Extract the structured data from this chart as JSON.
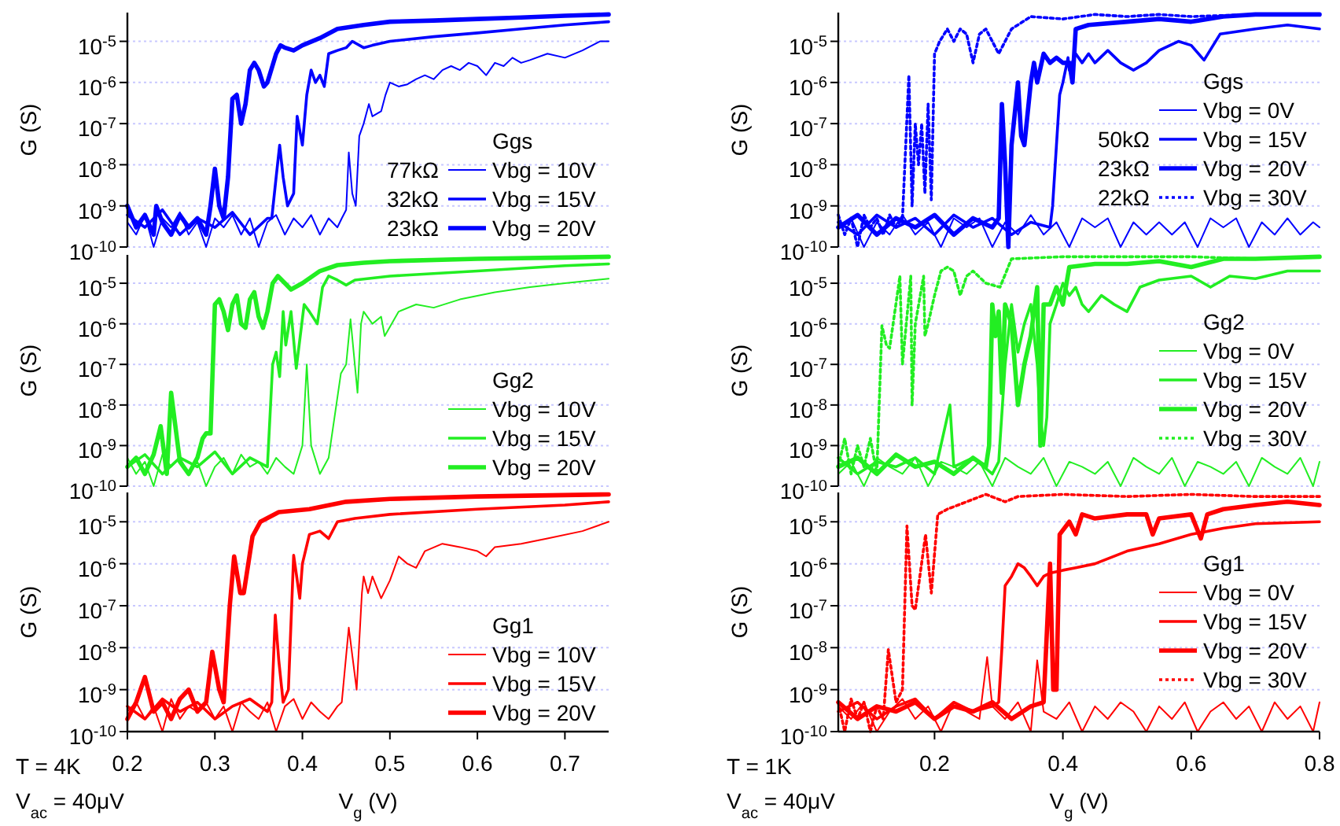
{
  "chart_data": [
    {
      "type": "line",
      "log": "y",
      "xlim": [
        0.2,
        0.75
      ],
      "ylim": [
        1e-10,
        5e-05
      ],
      "yticks": [
        {
          "value": 1e-10,
          "label": "10$^{-10}$"
        },
        {
          "value": 1e-09,
          "label": "10$^{-9}$"
        },
        {
          "value": 1e-08,
          "label": "10$^{-8}$"
        },
        {
          "value": 1e-07,
          "label": "10$^{-7}$"
        },
        {
          "value": 1e-06,
          "label": "10$^{-6}$"
        },
        {
          "value": 1e-05,
          "label": "10$^{-5}$"
        }
      ],
      "grid": "y",
      "tick_labels": "y",
      "ylabel": "G (S)",
      "legend": "bottom right",
      "legend_title": "Ggs",
      "annotations": [
        "77kΩ",
        "32kΩ",
        "23kΩ"
      ],
      "series": [
        {
          "name": "Vbg = 10V",
          "color": "#0000ff",
          "x": [
            0.2,
            0.21,
            0.22,
            0.23,
            0.24,
            0.25,
            0.26,
            0.27,
            0.28,
            0.29,
            0.3,
            0.31,
            0.32,
            0.33,
            0.34,
            0.35,
            0.36,
            0.37,
            0.38,
            0.39,
            0.4,
            0.41,
            0.42,
            0.43,
            0.44,
            0.445,
            0.45,
            0.453,
            0.457,
            0.461,
            0.465,
            0.47,
            0.476,
            0.48,
            0.49,
            0.495,
            0.5,
            0.51,
            0.52,
            0.53,
            0.54,
            0.55,
            0.56,
            0.57,
            0.58,
            0.59,
            0.6,
            0.61,
            0.62,
            0.63,
            0.64,
            0.65,
            0.66,
            0.68,
            0.7,
            0.72,
            0.74,
            0.75
          ],
          "values": [
            4e-10,
            2e-10,
            6e-10,
            1e-10,
            5e-10,
            3e-10,
            7e-10,
            2e-10,
            4e-10,
            1e-10,
            5e-10,
            3e-10,
            6e-10,
            2e-10,
            5e-10,
            1e-10,
            4e-10,
            6e-10,
            2e-10,
            5e-10,
            3e-10,
            6e-10,
            2e-10,
            5e-10,
            3e-10,
            5e-10,
            8e-10,
            2e-08,
            2e-09,
            1e-09,
            5e-08,
            1e-07,
            3e-07,
            1.5e-07,
            2e-07,
            5e-07,
            1e-06,
            8e-07,
            9e-07,
            1.2e-06,
            1.5e-06,
            1.2e-06,
            2e-06,
            2.5e-06,
            2e-06,
            3e-06,
            2.5e-06,
            1.5e-06,
            3e-06,
            2.5e-06,
            4e-06,
            3e-06,
            3.5e-06,
            5e-06,
            4e-06,
            6e-06,
            1e-05,
            1e-05
          ]
        },
        {
          "name": "Vbg = 15V",
          "color": "#0000ff",
          "x": [
            0.2,
            0.22,
            0.24,
            0.26,
            0.28,
            0.3,
            0.32,
            0.34,
            0.36,
            0.365,
            0.37,
            0.374,
            0.378,
            0.383,
            0.39,
            0.394,
            0.4,
            0.405,
            0.41,
            0.415,
            0.42,
            0.425,
            0.43,
            0.44,
            0.45,
            0.457,
            0.47,
            0.48,
            0.5,
            0.55,
            0.6,
            0.65,
            0.7,
            0.75
          ],
          "values": [
            6e-10,
            3e-10,
            8e-10,
            2e-10,
            5e-10,
            3e-10,
            7e-10,
            2e-10,
            5e-10,
            5e-10,
            5e-09,
            3e-08,
            5e-09,
            1e-09,
            2e-09,
            1.5e-07,
            3e-08,
            5e-07,
            2e-06,
            1e-06,
            1.5e-06,
            8e-07,
            5e-06,
            6e-06,
            7e-06,
            1e-05,
            7e-06,
            8e-06,
            1e-05,
            1.3e-05,
            1.6e-05,
            2e-05,
            2.5e-05,
            3e-05
          ]
        },
        {
          "name": "Vbg = 20V",
          "color": "#0000ff",
          "x": [
            0.2,
            0.21,
            0.22,
            0.23,
            0.233,
            0.24,
            0.25,
            0.26,
            0.27,
            0.28,
            0.29,
            0.295,
            0.3,
            0.305,
            0.31,
            0.315,
            0.32,
            0.325,
            0.33,
            0.335,
            0.34,
            0.345,
            0.35,
            0.356,
            0.36,
            0.37,
            0.375,
            0.38,
            0.39,
            0.4,
            0.42,
            0.44,
            0.47,
            0.5,
            0.55,
            0.6,
            0.65,
            0.7,
            0.75
          ],
          "values": [
            1e-09,
            3e-10,
            6e-10,
            2e-10,
            1e-09,
            4e-10,
            2e-10,
            6e-10,
            3e-10,
            5e-10,
            2e-10,
            1e-09,
            8e-09,
            1e-09,
            5e-10,
            5e-09,
            4e-07,
            5e-07,
            1e-07,
            3e-07,
            2e-06,
            3e-06,
            2e-06,
            8e-07,
            1e-06,
            5e-06,
            8e-06,
            7e-06,
            6e-06,
            8e-06,
            1.2e-05,
            2e-05,
            2.5e-05,
            3e-05,
            3.2e-05,
            3.5e-05,
            3.8e-05,
            4.2e-05,
            4.5e-05
          ]
        }
      ]
    },
    {
      "type": "line",
      "log": "y",
      "xlim": [
        0.05,
        0.8
      ],
      "ylim": [
        1e-10,
        5e-05
      ],
      "yticks": [
        {
          "value": 1e-10,
          "label": "10$^{-10}$"
        },
        {
          "value": 1e-09,
          "label": "10$^{-9}$"
        },
        {
          "value": 1e-08,
          "label": "10$^{-8}$"
        },
        {
          "value": 1e-07,
          "label": "10$^{-7}$"
        },
        {
          "value": 1e-06,
          "label": "10$^{-6}$"
        },
        {
          "value": 1e-05,
          "label": "10$^{-5}$"
        }
      ],
      "grid": "y",
      "tick_labels": "y",
      "ylabel": "G (S)",
      "legend": "right",
      "legend_title": "Ggs",
      "annotations": [
        "50kΩ",
        "23kΩ",
        "22kΩ"
      ],
      "series": [
        {
          "name": "Vbg = 0V",
          "color": "#0000ff",
          "x": [
            0.05,
            0.07,
            0.09,
            0.11,
            0.13,
            0.15,
            0.17,
            0.19,
            0.21,
            0.23,
            0.25,
            0.27,
            0.29,
            0.31,
            0.33,
            0.35,
            0.37,
            0.39,
            0.41,
            0.43,
            0.45,
            0.47,
            0.49,
            0.51,
            0.53,
            0.55,
            0.57,
            0.59,
            0.61,
            0.63,
            0.65,
            0.67,
            0.69,
            0.71,
            0.73,
            0.75,
            0.77,
            0.79,
            0.8
          ],
          "values": [
            3e-10,
            5e-10,
            1e-10,
            4e-10,
            2e-10,
            6e-10,
            2e-10,
            4e-10,
            1e-10,
            5e-10,
            3e-10,
            5e-10,
            1e-10,
            4e-10,
            2e-10,
            6e-10,
            2e-10,
            4e-10,
            1e-10,
            5e-10,
            3e-10,
            5e-10,
            1e-10,
            4e-10,
            2e-10,
            4e-10,
            2e-10,
            4e-10,
            1e-10,
            5e-10,
            3e-10,
            5e-10,
            1e-10,
            4e-10,
            2e-10,
            5e-10,
            2e-10,
            4e-10,
            3e-10
          ]
        },
        {
          "name": "Vbg = 15V",
          "color": "#0000ff",
          "x": [
            0.05,
            0.08,
            0.11,
            0.14,
            0.17,
            0.2,
            0.23,
            0.26,
            0.29,
            0.32,
            0.35,
            0.38,
            0.384,
            0.39,
            0.395,
            0.4,
            0.408,
            0.41,
            0.42,
            0.43,
            0.44,
            0.45,
            0.47,
            0.49,
            0.51,
            0.53,
            0.55,
            0.58,
            0.6,
            0.62,
            0.645,
            0.7,
            0.75,
            0.8
          ],
          "values": [
            4e-10,
            2e-10,
            6e-10,
            3e-10,
            5e-10,
            2e-10,
            6e-10,
            3e-10,
            5e-10,
            2e-10,
            4e-10,
            3e-10,
            1e-09,
            3e-08,
            5e-07,
            1e-06,
            4e-06,
            2e-06,
            5e-06,
            3e-06,
            5e-06,
            3e-06,
            6e-06,
            3e-06,
            2e-06,
            3e-06,
            6e-06,
            1e-05,
            8e-06,
            3.5e-06,
            1.5e-05,
            2e-05,
            2.5e-05,
            2e-05
          ]
        },
        {
          "name": "Vbg = 20V",
          "color": "#0000ff",
          "x": [
            0.05,
            0.08,
            0.11,
            0.14,
            0.17,
            0.2,
            0.23,
            0.26,
            0.29,
            0.3,
            0.305,
            0.31,
            0.315,
            0.32,
            0.33,
            0.335,
            0.34,
            0.35,
            0.355,
            0.36,
            0.37,
            0.38,
            0.39,
            0.4,
            0.41,
            0.415,
            0.42,
            0.44,
            0.5,
            0.55,
            0.6,
            0.65,
            0.7,
            0.8
          ],
          "values": [
            3e-10,
            6e-10,
            2e-10,
            5e-10,
            3e-10,
            6e-10,
            2e-10,
            5e-10,
            3e-10,
            5e-10,
            3e-07,
            1e-08,
            1e-10,
            3e-08,
            1e-06,
            5e-08,
            3e-08,
            1e-06,
            3e-06,
            1e-06,
            5e-06,
            3e-06,
            4e-06,
            3e-06,
            3e-06,
            1e-06,
            2e-05,
            2.5e-05,
            3e-05,
            3.5e-05,
            3e-05,
            4e-05,
            4.5e-05,
            4.5e-05
          ]
        },
        {
          "name": "Vbg = 30V",
          "color": "#0000ff",
          "line_style": "dotted",
          "x": [
            0.05,
            0.06,
            0.07,
            0.08,
            0.09,
            0.1,
            0.11,
            0.12,
            0.13,
            0.14,
            0.15,
            0.16,
            0.165,
            0.17,
            0.175,
            0.18,
            0.185,
            0.19,
            0.195,
            0.2,
            0.208,
            0.22,
            0.23,
            0.24,
            0.25,
            0.26,
            0.27,
            0.28,
            0.3,
            0.32,
            0.35,
            0.4,
            0.45,
            0.5,
            0.55,
            0.6,
            0.7,
            0.8
          ],
          "values": [
            6e-10,
            2e-10,
            5e-10,
            1e-10,
            6e-10,
            3e-10,
            5e-10,
            2e-10,
            6e-10,
            3e-10,
            5e-10,
            1.5e-06,
            1e-09,
            1e-07,
            1e-08,
            1e-07,
            2e-09,
            3e-07,
            1.4e-09,
            5e-06,
            1e-05,
            2e-05,
            1e-05,
            2e-05,
            1.5e-05,
            3e-06,
            1.5e-05,
            2e-05,
            5e-06,
            2e-05,
            4e-05,
            3.5e-05,
            4.5e-05,
            4e-05,
            4.5e-05,
            4e-05,
            4.5e-05,
            4.5e-05
          ]
        }
      ]
    },
    {
      "type": "line",
      "log": "y",
      "xlim": [
        0.2,
        0.75
      ],
      "ylim": [
        1e-10,
        5e-05
      ],
      "yticks": [
        {
          "value": 1e-10,
          "label": "10$^{-10}$"
        },
        {
          "value": 1e-09,
          "label": "10$^{-9}$"
        },
        {
          "value": 1e-08,
          "label": "10$^{-8}$"
        },
        {
          "value": 1e-07,
          "label": "10$^{-7}$"
        },
        {
          "value": 1e-06,
          "label": "10$^{-6}$"
        },
        {
          "value": 1e-05,
          "label": "10$^{-5}$"
        }
      ],
      "grid": "y",
      "tick_labels": "y",
      "ylabel": "G (S)",
      "legend": "bottom right",
      "legend_title": "Gg2",
      "series": [
        {
          "name": "Vbg = 10V",
          "color": "#22ee22",
          "x": [
            0.2,
            0.21,
            0.22,
            0.23,
            0.24,
            0.25,
            0.26,
            0.27,
            0.28,
            0.29,
            0.3,
            0.31,
            0.32,
            0.33,
            0.34,
            0.35,
            0.36,
            0.37,
            0.38,
            0.39,
            0.4,
            0.405,
            0.41,
            0.42,
            0.43,
            0.432,
            0.444,
            0.45,
            0.455,
            0.463,
            0.467,
            0.47,
            0.48,
            0.49,
            0.494,
            0.51,
            0.53,
            0.55,
            0.58,
            0.62,
            0.66,
            0.7,
            0.75
          ],
          "values": [
            5e-10,
            2e-10,
            4e-10,
            1e-10,
            6e-10,
            3e-10,
            5e-10,
            2e-10,
            4e-10,
            1e-10,
            3e-10,
            5e-10,
            2e-10,
            6e-10,
            3e-10,
            4e-10,
            2e-10,
            5e-10,
            3e-10,
            2e-10,
            1e-09,
            1e-07,
            1e-09,
            2e-10,
            5e-10,
            1e-09,
            6e-08,
            1e-07,
            1.3e-06,
            2e-08,
            1e-06,
            2e-06,
            1e-06,
            1.5e-06,
            5e-07,
            2e-06,
            3e-06,
            2.5e-06,
            4e-06,
            6e-06,
            8e-06,
            1e-05,
            1.3e-05
          ]
        },
        {
          "name": "Vbg = 15V",
          "color": "#22ee22",
          "x": [
            0.2,
            0.22,
            0.24,
            0.26,
            0.28,
            0.3,
            0.32,
            0.34,
            0.36,
            0.366,
            0.37,
            0.374,
            0.378,
            0.381,
            0.387,
            0.393,
            0.402,
            0.408,
            0.417,
            0.423,
            0.43,
            0.44,
            0.45,
            0.46,
            0.5,
            0.6,
            0.7,
            0.75
          ],
          "values": [
            3e-10,
            6e-10,
            2e-10,
            5e-10,
            3e-10,
            7e-10,
            2e-10,
            5e-10,
            3e-10,
            1e-07,
            2e-07,
            5e-08,
            2e-06,
            3e-07,
            2e-06,
            8e-08,
            3e-06,
            2e-06,
            1e-06,
            8e-06,
            1.5e-05,
            1.2e-05,
            9e-06,
            1.2e-05,
            1.5e-05,
            2e-05,
            2.7e-05,
            3e-05
          ]
        },
        {
          "name": "Vbg = 20V",
          "color": "#22ee22",
          "x": [
            0.2,
            0.21,
            0.22,
            0.23,
            0.238,
            0.245,
            0.25,
            0.26,
            0.27,
            0.28,
            0.286,
            0.29,
            0.295,
            0.3,
            0.305,
            0.31,
            0.315,
            0.32,
            0.325,
            0.33,
            0.335,
            0.34,
            0.345,
            0.35,
            0.355,
            0.36,
            0.366,
            0.372,
            0.38,
            0.387,
            0.4,
            0.42,
            0.44,
            0.47,
            0.5,
            0.6,
            0.7,
            0.75
          ],
          "values": [
            3e-10,
            5e-10,
            2e-10,
            6e-10,
            3e-09,
            2e-10,
            2e-08,
            4e-10,
            2e-10,
            5e-10,
            1.5e-09,
            2e-09,
            2e-09,
            3e-06,
            4e-06,
            2e-06,
            7e-07,
            3e-06,
            5e-06,
            1e-06,
            8e-07,
            4e-06,
            6e-06,
            1.5e-06,
            8e-07,
            2e-06,
            1e-05,
            1.5e-05,
            1e-05,
            7e-06,
            1e-05,
            2e-05,
            2.8e-05,
            3.2e-05,
            3.5e-05,
            4e-05,
            4.3e-05,
            4.5e-05
          ]
        }
      ]
    },
    {
      "type": "line",
      "log": "y",
      "xlim": [
        0.05,
        0.8
      ],
      "ylim": [
        1e-10,
        5e-05
      ],
      "yticks": [
        {
          "value": 1e-10,
          "label": "10$^{-10}$"
        },
        {
          "value": 1e-09,
          "label": "10$^{-9}$"
        },
        {
          "value": 1e-08,
          "label": "10$^{-8}$"
        },
        {
          "value": 1e-07,
          "label": "10$^{-7}$"
        },
        {
          "value": 1e-06,
          "label": "10$^{-6}$"
        },
        {
          "value": 1e-05,
          "label": "10$^{-5}$"
        }
      ],
      "grid": "y",
      "tick_labels": "y",
      "ylabel": "G (S)",
      "legend": "right",
      "legend_title": "Gg2",
      "series": [
        {
          "name": "Vbg = 0V",
          "color": "#22ee22",
          "x": [
            0.05,
            0.07,
            0.09,
            0.11,
            0.13,
            0.15,
            0.17,
            0.19,
            0.21,
            0.23,
            0.25,
            0.27,
            0.29,
            0.31,
            0.33,
            0.35,
            0.37,
            0.39,
            0.41,
            0.43,
            0.45,
            0.47,
            0.49,
            0.51,
            0.53,
            0.55,
            0.57,
            0.59,
            0.61,
            0.63,
            0.65,
            0.67,
            0.69,
            0.71,
            0.73,
            0.75,
            0.77,
            0.79,
            0.8
          ],
          "values": [
            2e-10,
            4e-10,
            1e-10,
            5e-10,
            3e-10,
            2e-10,
            5e-10,
            1e-10,
            4e-10,
            3e-10,
            2e-10,
            4e-10,
            1e-10,
            5e-10,
            3e-10,
            2e-10,
            5e-10,
            1e-10,
            4e-10,
            3e-10,
            2e-10,
            4e-10,
            1e-10,
            5e-10,
            3e-10,
            2e-10,
            5e-10,
            1e-10,
            4e-10,
            3e-10,
            2e-10,
            4e-10,
            1e-10,
            5e-10,
            3e-10,
            2e-10,
            5e-10,
            1e-10,
            4e-10
          ]
        },
        {
          "name": "Vbg = 15V",
          "color": "#22ee22",
          "x": [
            0.05,
            0.08,
            0.11,
            0.14,
            0.17,
            0.2,
            0.224,
            0.23,
            0.26,
            0.29,
            0.3,
            0.31,
            0.32,
            0.33,
            0.34,
            0.35,
            0.36,
            0.365,
            0.37,
            0.375,
            0.38,
            0.39,
            0.4,
            0.41,
            0.42,
            0.43,
            0.44,
            0.46,
            0.48,
            0.5,
            0.52,
            0.55,
            0.6,
            0.63,
            0.66,
            0.7,
            0.75,
            0.8
          ],
          "values": [
            5e-10,
            2e-10,
            4e-10,
            3e-10,
            5e-10,
            2e-10,
            1e-08,
            3e-10,
            5e-10,
            2e-10,
            4e-10,
            1e-07,
            3e-06,
            2e-07,
            1e-06,
            3e-06,
            1e-07,
            5e-09,
            1e-09,
            5e-09,
            1e-06,
            3e-06,
            1e-05,
            5e-06,
            8e-06,
            3e-06,
            2e-06,
            5e-06,
            3e-06,
            2e-06,
            8e-06,
            1.2e-05,
            1.5e-05,
            8e-06,
            1.5e-05,
            1.3e-05,
            2e-05,
            2e-05
          ]
        },
        {
          "name": "Vbg = 20V",
          "color": "#22ee22",
          "x": [
            0.05,
            0.08,
            0.11,
            0.14,
            0.17,
            0.2,
            0.23,
            0.26,
            0.28,
            0.285,
            0.29,
            0.295,
            0.3,
            0.305,
            0.31,
            0.32,
            0.33,
            0.34,
            0.35,
            0.36,
            0.365,
            0.37,
            0.38,
            0.39,
            0.4,
            0.41,
            0.45,
            0.5,
            0.55,
            0.6,
            0.65,
            0.7,
            0.8
          ],
          "values": [
            3e-10,
            5e-10,
            2e-10,
            6e-10,
            3e-10,
            4e-10,
            2e-10,
            5e-10,
            3e-10,
            1e-09,
            3e-06,
            5e-07,
            2e-06,
            2e-08,
            3e-06,
            1e-06,
            1e-08,
            1e-07,
            5e-07,
            8e-06,
            1e-09,
            3e-06,
            3e-06,
            8e-06,
            3e-06,
            2.5e-05,
            3e-05,
            3e-05,
            3.5e-05,
            2.5e-05,
            4e-05,
            4e-05,
            4.5e-05
          ]
        },
        {
          "name": "Vbg = 30V",
          "color": "#22ee22",
          "line_style": "dotted",
          "x": [
            0.05,
            0.06,
            0.07,
            0.08,
            0.09,
            0.1,
            0.11,
            0.118,
            0.125,
            0.13,
            0.146,
            0.15,
            0.163,
            0.165,
            0.17,
            0.183,
            0.185,
            0.19,
            0.2,
            0.21,
            0.22,
            0.23,
            0.24,
            0.25,
            0.26,
            0.28,
            0.302,
            0.32,
            0.4,
            0.5,
            0.6,
            0.7,
            0.8
          ],
          "values": [
            3e-10,
            1.5e-09,
            2e-10,
            1e-09,
            3e-10,
            1.5e-09,
            2e-10,
            9e-07,
            3e-07,
            2.5e-07,
            1.5e-05,
            1e-07,
            1.5e-05,
            1e-08,
            1e-06,
            1.5e-05,
            5e-07,
            1e-06,
            5e-06,
            2e-05,
            2.5e-05,
            2e-05,
            5e-06,
            1.5e-05,
            2e-05,
            1e-05,
            8e-06,
            4e-05,
            4.5e-05,
            4.5e-05,
            4.5e-05,
            4e-05,
            4.5e-05
          ]
        }
      ]
    },
    {
      "type": "line",
      "log": "y",
      "xlim": [
        0.2,
        0.75
      ],
      "xticks": [
        0.2,
        0.3,
        0.4,
        0.5,
        0.6,
        0.7
      ],
      "ylim": [
        1e-10,
        5e-05
      ],
      "yticks": [
        {
          "value": 1e-10,
          "label": "10$^{-10}$"
        },
        {
          "value": 1e-09,
          "label": "10$^{-9}$"
        },
        {
          "value": 1e-08,
          "label": "10$^{-8}$"
        },
        {
          "value": 1e-07,
          "label": "10$^{-7}$"
        },
        {
          "value": 1e-06,
          "label": "10$^{-6}$"
        },
        {
          "value": 1e-05,
          "label": "10$^{-5}$"
        }
      ],
      "grid": "y",
      "xlabel": "V$_{g}$ (V)",
      "ylabel": "G (S)",
      "legend": "bottom right",
      "legend_title": "Gg1",
      "annotations": [
        "T = 4K",
        "V$_{ac}$ = 40μV"
      ],
      "series": [
        {
          "name": "Vbg = 10V",
          "color": "#ff0000",
          "x": [
            0.2,
            0.21,
            0.22,
            0.23,
            0.24,
            0.25,
            0.26,
            0.27,
            0.28,
            0.29,
            0.3,
            0.31,
            0.32,
            0.33,
            0.34,
            0.35,
            0.36,
            0.37,
            0.38,
            0.39,
            0.4,
            0.41,
            0.42,
            0.43,
            0.44,
            0.445,
            0.453,
            0.462,
            0.468,
            0.47,
            0.475,
            0.48,
            0.49,
            0.5,
            0.51,
            0.52,
            0.53,
            0.54,
            0.56,
            0.58,
            0.6,
            0.61,
            0.62,
            0.65,
            0.68,
            0.72,
            0.75
          ],
          "values": [
            3e-10,
            5e-10,
            2e-10,
            4e-10,
            1e-10,
            6e-10,
            2e-10,
            4e-10,
            3e-10,
            5e-10,
            2e-10,
            4e-10,
            1e-10,
            5e-10,
            3e-10,
            2e-10,
            5e-10,
            1e-10,
            4e-10,
            6e-10,
            2e-10,
            5e-10,
            3e-10,
            2e-10,
            4e-10,
            5e-10,
            3e-08,
            1e-09,
            2e-07,
            5e-07,
            2e-07,
            5e-07,
            1.5e-07,
            4e-07,
            1.5e-06,
            1e-06,
            8e-07,
            2e-06,
            3e-06,
            2.5e-06,
            2e-06,
            1.5e-06,
            2.5e-06,
            3e-06,
            4e-06,
            6e-06,
            1e-05
          ]
        },
        {
          "name": "Vbg = 15V",
          "color": "#ff0000",
          "x": [
            0.2,
            0.22,
            0.24,
            0.26,
            0.28,
            0.3,
            0.32,
            0.34,
            0.36,
            0.365,
            0.369,
            0.373,
            0.378,
            0.384,
            0.39,
            0.397,
            0.4,
            0.408,
            0.42,
            0.43,
            0.44,
            0.46,
            0.5,
            0.6,
            0.7,
            0.75
          ],
          "values": [
            4e-10,
            2e-10,
            6e-10,
            3e-10,
            5e-10,
            2e-10,
            4e-10,
            6e-10,
            3e-10,
            5e-10,
            6e-08,
            5e-09,
            5e-10,
            1e-09,
            1.6e-06,
            1.5e-07,
            1e-06,
            5e-06,
            6e-06,
            4e-06,
            1e-05,
            1.2e-05,
            1.5e-05,
            2e-05,
            2.5e-05,
            3e-05
          ]
        },
        {
          "name": "Vbg = 20V",
          "color": "#ff0000",
          "x": [
            0.2,
            0.21,
            0.22,
            0.23,
            0.24,
            0.25,
            0.26,
            0.27,
            0.28,
            0.29,
            0.297,
            0.305,
            0.31,
            0.317,
            0.322,
            0.329,
            0.333,
            0.343,
            0.352,
            0.373,
            0.408,
            0.45,
            0.5,
            0.6,
            0.75
          ],
          "values": [
            2e-10,
            5e-10,
            2e-09,
            3e-10,
            5e-10,
            2e-10,
            6e-10,
            1e-09,
            3e-10,
            5e-10,
            8e-09,
            1e-09,
            5e-10,
            1e-07,
            1.5e-06,
            2e-07,
            2e-07,
            4.5e-06,
            1e-05,
            1.7e-05,
            2e-05,
            3e-05,
            3.5e-05,
            4e-05,
            4.5e-05
          ]
        }
      ]
    },
    {
      "type": "line",
      "log": "y",
      "xlim": [
        0.05,
        0.8
      ],
      "xticks": [
        0.2,
        0.4,
        0.6,
        0.8
      ],
      "ylim": [
        1e-10,
        5e-05
      ],
      "yticks": [
        {
          "value": 1e-10,
          "label": "10$^{-10}$"
        },
        {
          "value": 1e-09,
          "label": "10$^{-9}$"
        },
        {
          "value": 1e-08,
          "label": "10$^{-8}$"
        },
        {
          "value": 1e-07,
          "label": "10$^{-7}$"
        },
        {
          "value": 1e-06,
          "label": "10$^{-6}$"
        },
        {
          "value": 1e-05,
          "label": "10$^{-5}$"
        }
      ],
      "grid": "y",
      "xlabel": "V$_{g}$ (V)",
      "ylabel": "G (S)",
      "legend": "right",
      "legend_title": "Gg1",
      "annotations": [
        "T = 1K",
        "V$_{ac}$ = 40μV"
      ],
      "series": [
        {
          "name": "Vbg = 0V",
          "color": "#ff0000",
          "x": [
            0.05,
            0.07,
            0.09,
            0.11,
            0.13,
            0.15,
            0.17,
            0.19,
            0.21,
            0.23,
            0.25,
            0.27,
            0.282,
            0.29,
            0.31,
            0.33,
            0.35,
            0.36,
            0.37,
            0.39,
            0.41,
            0.43,
            0.45,
            0.47,
            0.49,
            0.51,
            0.53,
            0.55,
            0.57,
            0.59,
            0.61,
            0.63,
            0.65,
            0.67,
            0.69,
            0.71,
            0.73,
            0.75,
            0.77,
            0.79,
            0.8
          ],
          "values": [
            4e-10,
            2e-10,
            5e-10,
            1e-10,
            3e-10,
            6e-10,
            2e-10,
            4e-10,
            1e-10,
            5e-10,
            3e-10,
            2e-10,
            6e-09,
            4e-10,
            2e-10,
            5e-10,
            1e-10,
            5e-09,
            3e-10,
            2e-10,
            5e-10,
            1e-10,
            4e-10,
            2e-10,
            5e-10,
            3e-10,
            1e-10,
            4e-10,
            2e-10,
            5e-10,
            1e-10,
            3e-10,
            5e-10,
            2e-10,
            4e-10,
            1e-10,
            5e-10,
            2e-10,
            4e-10,
            1e-10,
            5e-10
          ]
        },
        {
          "name": "Vbg = 15V",
          "color": "#ff0000",
          "x": [
            0.05,
            0.08,
            0.11,
            0.14,
            0.17,
            0.2,
            0.23,
            0.26,
            0.29,
            0.3,
            0.305,
            0.31,
            0.32,
            0.33,
            0.34,
            0.35,
            0.36,
            0.37,
            0.38,
            0.4,
            0.42,
            0.45,
            0.5,
            0.55,
            0.6,
            0.65,
            0.7,
            0.8
          ],
          "values": [
            3e-10,
            5e-10,
            2e-10,
            4e-10,
            6e-10,
            2e-10,
            5e-10,
            3e-10,
            4e-10,
            5e-10,
            1e-08,
            3e-07,
            5e-07,
            1e-06,
            8e-07,
            5e-07,
            3e-07,
            5e-07,
            6e-07,
            7e-07,
            8e-07,
            1e-06,
            2e-06,
            3e-06,
            5e-06,
            7e-06,
            9e-06,
            1e-05
          ]
        },
        {
          "name": "Vbg = 20V",
          "color": "#ff0000",
          "x": [
            0.05,
            0.08,
            0.11,
            0.14,
            0.17,
            0.2,
            0.23,
            0.26,
            0.29,
            0.32,
            0.35,
            0.37,
            0.38,
            0.385,
            0.39,
            0.395,
            0.41,
            0.42,
            0.43,
            0.45,
            0.5,
            0.53,
            0.54,
            0.55,
            0.6,
            0.615,
            0.625,
            0.65,
            0.7,
            0.75,
            0.8
          ],
          "values": [
            5e-10,
            2e-10,
            4e-10,
            3e-10,
            5e-10,
            2e-10,
            4e-10,
            3e-10,
            5e-10,
            2e-10,
            4e-10,
            5e-10,
            1e-06,
            1e-09,
            1e-09,
            5e-06,
            1e-05,
            5e-06,
            1.5e-05,
            1.2e-05,
            1.5e-05,
            1.5e-05,
            5e-06,
            1.2e-05,
            1.5e-05,
            4e-06,
            1.5e-05,
            2e-05,
            2.5e-05,
            3e-05,
            2.5e-05
          ]
        },
        {
          "name": "Vbg = 30V",
          "color": "#ff0000",
          "line_style": "dotted",
          "x": [
            0.05,
            0.06,
            0.07,
            0.08,
            0.09,
            0.1,
            0.11,
            0.12,
            0.128,
            0.14,
            0.15,
            0.157,
            0.165,
            0.17,
            0.186,
            0.195,
            0.205,
            0.22,
            0.25,
            0.28,
            0.31,
            0.33,
            0.4,
            0.5,
            0.6,
            0.7,
            0.8
          ],
          "values": [
            5e-10,
            1e-10,
            6e-10,
            2e-10,
            5e-10,
            1e-10,
            4e-10,
            2e-10,
            9e-09,
            5e-10,
            1e-09,
            8e-06,
            1e-07,
            8e-08,
            5e-06,
            2e-07,
            1.5e-05,
            2e-05,
            3e-05,
            4.5e-05,
            3e-05,
            4e-05,
            4.5e-05,
            4e-05,
            4.5e-05,
            4e-05,
            4e-05
          ]
        }
      ]
    }
  ]
}
